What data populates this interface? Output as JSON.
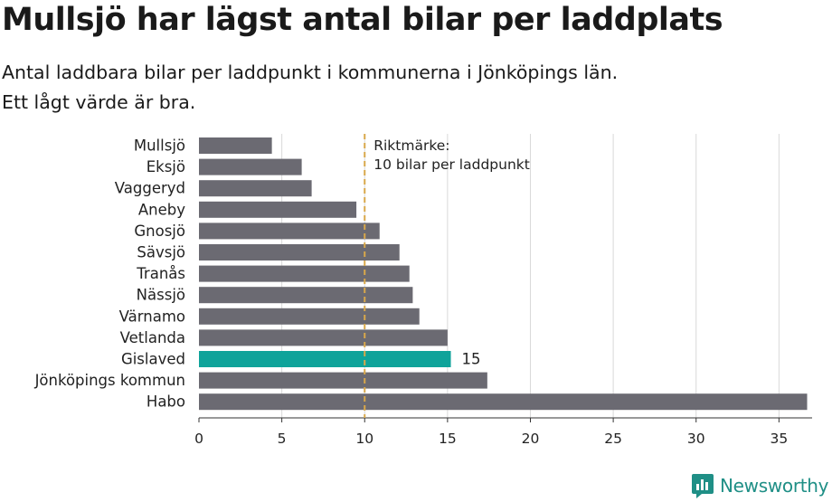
{
  "header": {
    "title": "Mullsjö har lägst antal bilar per laddplats",
    "subtitle_line1": "Antal laddbara bilar per laddpunkt i kommunerna i Jönköpings län.",
    "subtitle_line2": "Ett lågt värde är bra."
  },
  "chart_data": {
    "type": "bar",
    "orientation": "horizontal",
    "categories": [
      "Mullsjö",
      "Eksjö",
      "Vaggeryd",
      "Aneby",
      "Gnosjö",
      "Sävsjö",
      "Tranås",
      "Nässjö",
      "Värnamo",
      "Vetlanda",
      "Gislaved",
      "Jönköpings kommun",
      "Habo"
    ],
    "values": [
      4.4,
      6.2,
      6.8,
      9.5,
      10.9,
      12.1,
      12.7,
      12.9,
      13.3,
      15.0,
      15.2,
      17.4,
      36.7
    ],
    "highlight": "Gislaved",
    "highlight_label": "15",
    "xlim": [
      0,
      37
    ],
    "xticks": [
      0,
      5,
      10,
      15,
      20,
      25,
      30,
      35
    ],
    "grid": true,
    "reference_line": {
      "value": 10,
      "label_line1": "Riktmärke:",
      "label_line2": "10 bilar per laddpunkt"
    },
    "colors": {
      "bar": "#6b6a72",
      "highlight": "#0fa39a",
      "reference": "#d9a84a",
      "grid": "#d9d9d9"
    }
  },
  "brand": {
    "name": "Newsworthy",
    "icon": "newsworthy-logo-icon"
  }
}
